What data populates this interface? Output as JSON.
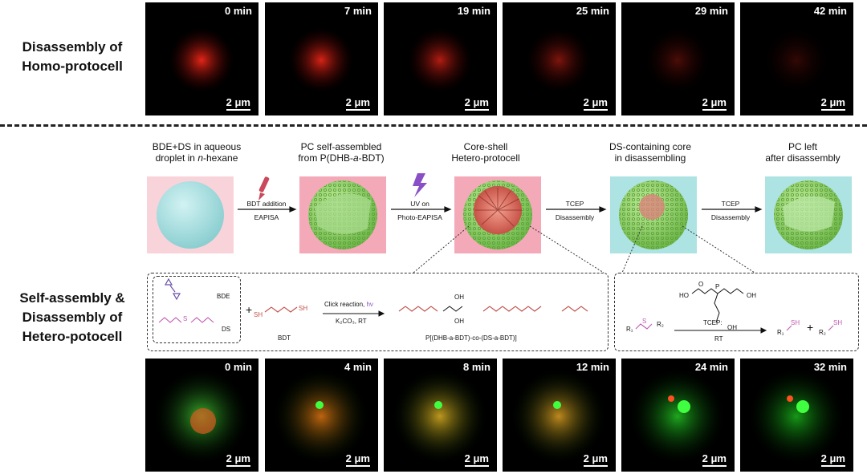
{
  "homo_label": [
    "Disassembly of",
    "Homo-protocell"
  ],
  "hetero_label": [
    "Self-assembly &",
    "Disassembly of",
    "Hetero-potocell"
  ],
  "homo_panels": [
    {
      "time": "0 min",
      "scale": "2 μm"
    },
    {
      "time": "7 min",
      "scale": "2 μm"
    },
    {
      "time": "19 min",
      "scale": "2 μm"
    },
    {
      "time": "25 min",
      "scale": "2 μm"
    },
    {
      "time": "29 min",
      "scale": "2 μm"
    },
    {
      "time": "42 min",
      "scale": "2 μm"
    }
  ],
  "hetero_panels": [
    {
      "time": "0 min",
      "scale": "2 μm"
    },
    {
      "time": "4 min",
      "scale": "2 μm"
    },
    {
      "time": "8 min",
      "scale": "2 μm"
    },
    {
      "time": "12 min",
      "scale": "2 μm"
    },
    {
      "time": "24 min",
      "scale": "2 μm"
    },
    {
      "time": "32 min",
      "scale": "2 μm"
    }
  ],
  "steps": {
    "s1_a": "BDE+DS in aqueous",
    "s1_b": "droplet in ",
    "s1_c": "n",
    "s1_d": "-hexane",
    "s2_a": "PC self-assembled",
    "s2_b": "from P(DHB-",
    "s2_c": "a",
    "s2_d": "-BDT)",
    "s3_a": "Core-shell",
    "s3_b": "Hetero-protocell",
    "s4_a": "DS-containing core",
    "s4_b": "in disassembling",
    "s5_a": "PC left",
    "s5_b": "after disassembly"
  },
  "arrows": {
    "a1_top": "BDT addition",
    "a1_bot": "EAPISA",
    "a2_top": "UV on",
    "a2_bot": "Photo-EAPISA",
    "a3_top": "TCEP",
    "a3_bot": "Disassembly",
    "a4_top": "TCEP",
    "a4_bot": "Disassembly"
  },
  "chem_left": {
    "bde": "BDE",
    "ds": "DS",
    "plus": "+",
    "bdt": "BDT",
    "sh1": "SH",
    "sh2": "SH",
    "cond_top": "Click reaction, ",
    "hv": "hν",
    "cond_bot": "K₂CO₃, RT",
    "product": "P[(DHB-a-BDT)-co-(DS-a-BDT)]",
    "oh1": "OH",
    "oh2": "OH",
    "s": "S"
  },
  "chem_right": {
    "ho": "HO",
    "oh": "OH",
    "oh3": "OH",
    "p": "P",
    "o": "O",
    "reactant": "R₁",
    "r2": "R₂",
    "s": "S",
    "cond_top": "TCEP:",
    "cond_bot": "RT",
    "prod1": "R₁",
    "plus": "+",
    "prod2": "R₂",
    "sh": "SH"
  },
  "colors": {
    "pink_bg": "#f7c6d0",
    "pink_bg2": "#f2a0b0",
    "cyan_bg": "#a8e4e4",
    "sphere": "#a9dfe0",
    "green_shell": "#8fd16a",
    "red_core": "#d9574e"
  }
}
